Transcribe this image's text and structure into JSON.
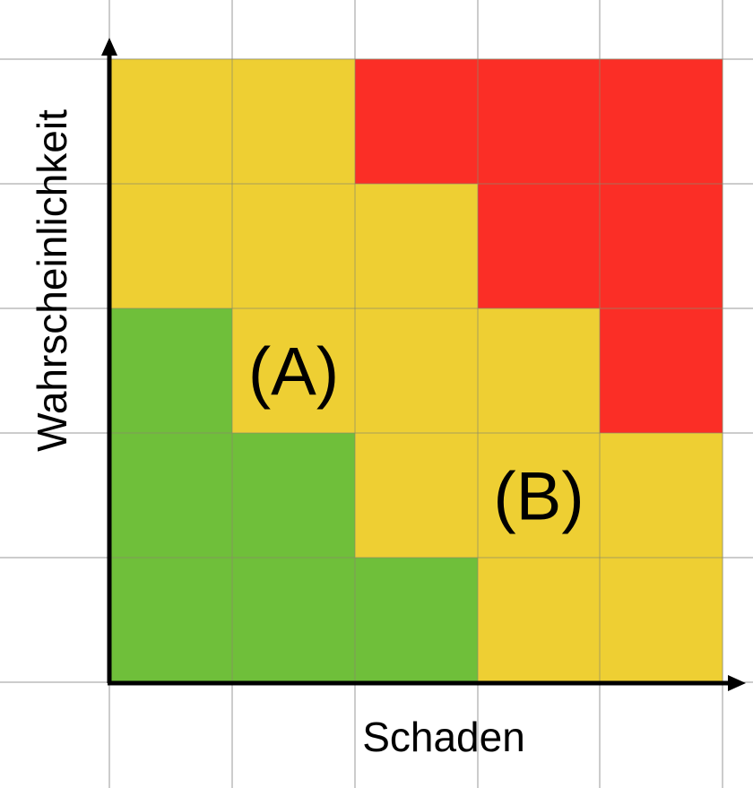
{
  "axes": {
    "x_label": "Schaden",
    "y_label": "Wahrscheinlichkeit"
  },
  "colors": {
    "green": "#6fbf3a",
    "yellow": "#eecf33",
    "red": "#fb2e26",
    "grid_line": "#999999",
    "axis": "#000000",
    "background": "#ffffff"
  },
  "matrix": {
    "rows_top_to_bottom": [
      [
        "yellow",
        "yellow",
        "red",
        "red",
        "red"
      ],
      [
        "yellow",
        "yellow",
        "yellow",
        "red",
        "red"
      ],
      [
        "green",
        "yellow",
        "yellow",
        "yellow",
        "red"
      ],
      [
        "green",
        "green",
        "yellow",
        "yellow",
        "yellow"
      ],
      [
        "green",
        "green",
        "green",
        "yellow",
        "yellow"
      ]
    ]
  },
  "markers": [
    {
      "label": "(A)",
      "column": 2,
      "row_from_bottom": 3
    },
    {
      "label": "(B)",
      "column": 4,
      "row_from_bottom": 2
    }
  ]
}
